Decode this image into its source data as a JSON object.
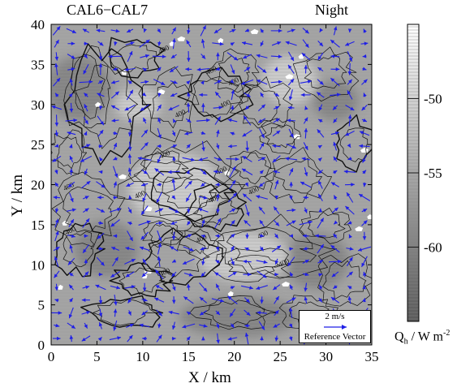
{
  "chart_data": {
    "type": "heatmap",
    "title_left": "CAL6−CAL7",
    "title_right": "Night",
    "xlabel": "X / km",
    "ylabel": "Y / km",
    "xlim": [
      0,
      35
    ],
    "ylim": [
      0,
      40
    ],
    "x_ticks": [
      0,
      5,
      10,
      15,
      20,
      25,
      30,
      35
    ],
    "y_ticks": [
      0,
      5,
      10,
      15,
      20,
      25,
      30,
      35,
      40
    ],
    "colorbar": {
      "label_main": "Q",
      "label_sub": "h",
      "label_unit": " / W m",
      "label_sup": "-2",
      "ticks": [
        -50,
        -55,
        -60
      ],
      "range": [
        -65,
        -45
      ],
      "colors": [
        "#5a5a5a",
        "#ffffff"
      ]
    },
    "contour_labels": [
      {
        "x": 12.4,
        "y": 36.6,
        "text": "400"
      },
      {
        "x": 17.6,
        "y": 34.0,
        "text": "400"
      },
      {
        "x": 20.0,
        "y": 32.6,
        "text": "400"
      },
      {
        "x": 14.2,
        "y": 28.6,
        "text": "400"
      },
      {
        "x": 19.1,
        "y": 29.8,
        "text": "400"
      },
      {
        "x": 12.5,
        "y": 23.5,
        "text": "400"
      },
      {
        "x": 18.7,
        "y": 21.5,
        "text": "400"
      },
      {
        "x": 2.0,
        "y": 19.5,
        "text": "400"
      },
      {
        "x": 9.8,
        "y": 18.5,
        "text": "400"
      },
      {
        "x": 17.9,
        "y": 18.0,
        "text": "400"
      },
      {
        "x": 22.2,
        "y": 19.0,
        "text": "400"
      },
      {
        "x": 2.2,
        "y": 14.0,
        "text": "400"
      },
      {
        "x": 23.2,
        "y": 13.5,
        "text": "400"
      },
      {
        "x": 16.5,
        "y": 13.0,
        "text": "400"
      },
      {
        "x": 25.5,
        "y": 10.0,
        "text": "400"
      },
      {
        "x": 12.5,
        "y": 8.8,
        "text": "400"
      }
    ],
    "white_patches": [
      [
        13.2,
        37.6
      ],
      [
        14.2,
        38.2
      ],
      [
        18.5,
        38.0
      ],
      [
        22.2,
        39.1
      ],
      [
        27.3,
        36.0
      ],
      [
        26.0,
        33.5
      ],
      [
        5.1,
        30.0
      ],
      [
        12.0,
        31.6
      ],
      [
        8.0,
        34.0
      ],
      [
        26.8,
        26.0
      ],
      [
        19.2,
        21.5
      ],
      [
        7.8,
        21.0
      ],
      [
        1.5,
        15.2
      ],
      [
        10.6,
        17.0
      ],
      [
        34.8,
        16.0
      ],
      [
        33.6,
        14.5
      ],
      [
        10.2,
        8.6
      ],
      [
        10.6,
        9.2
      ],
      [
        1.0,
        7.2
      ],
      [
        25.6,
        7.6
      ],
      [
        19.6,
        6.4
      ],
      [
        34.2,
        24.3
      ]
    ],
    "light_regions": [
      [
        13.5,
        19.5,
        5.0,
        4.5
      ],
      [
        21.0,
        11.0,
        5.0,
        3.0
      ],
      [
        26.0,
        33.0,
        3.0,
        3.0
      ],
      [
        9.5,
        30.0,
        2.5,
        2.0
      ]
    ],
    "dark_regions": [
      [
        3.0,
        32.0,
        3.5,
        4.0
      ],
      [
        29.0,
        10.5,
        3.5,
        3.5
      ],
      [
        20.5,
        3.5,
        6.5,
        2.5
      ],
      [
        6.0,
        12.0,
        3.5,
        3.5
      ],
      [
        31.0,
        30.5,
        2.5,
        2.5
      ]
    ],
    "vector_field": {
      "grid_spacing_km": 1.6,
      "x_start": 0.6,
      "y_start": 0.8,
      "reference_speed": "2 m/s",
      "reference_label": "Reference Vector",
      "color": "#1f1fe6"
    }
  }
}
